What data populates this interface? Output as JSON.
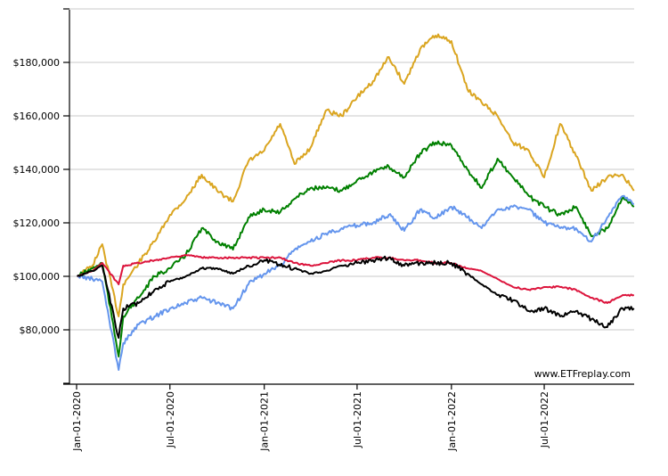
{
  "chart_data": {
    "type": "line",
    "title": "",
    "xlabel": "",
    "ylabel": "",
    "watermark": "www.ETFreplay.com",
    "ylim": [
      60000,
      200000
    ],
    "xlim": [
      "2019-12-20",
      "2022-12-23"
    ],
    "grid": true,
    "legend": "none",
    "y_ticks": [
      60000,
      80000,
      100000,
      120000,
      140000,
      160000,
      180000,
      200000
    ],
    "y_tick_labels": [
      "",
      "$80,000",
      "$100,000",
      "$120,000",
      "$140,000",
      "$160,000",
      "$180,000",
      ""
    ],
    "x_ticks": [
      "2020-01-01",
      "2020-07-01",
      "2021-01-01",
      "2021-07-01",
      "2022-01-01",
      "2022-07-01"
    ],
    "x_tick_labels": [
      "Jan-01-2020",
      "Jul-01-2020",
      "Jan-01-2021",
      "Jul-01-2021",
      "Jan-01-2022",
      "Jul-01-2022"
    ],
    "x": [
      "2020-01-02",
      "2020-02-01",
      "2020-02-20",
      "2020-03-23",
      "2020-04-01",
      "2020-05-01",
      "2020-06-01",
      "2020-07-01",
      "2020-08-01",
      "2020-09-01",
      "2020-10-01",
      "2020-11-01",
      "2020-12-01",
      "2021-01-01",
      "2021-02-01",
      "2021-03-01",
      "2021-04-01",
      "2021-05-01",
      "2021-06-01",
      "2021-07-01",
      "2021-08-01",
      "2021-09-01",
      "2021-10-01",
      "2021-11-01",
      "2021-12-01",
      "2022-01-01",
      "2022-02-01",
      "2022-03-01",
      "2022-04-01",
      "2022-05-01",
      "2022-06-01",
      "2022-07-01",
      "2022-08-01",
      "2022-09-01",
      "2022-10-01",
      "2022-11-01",
      "2022-12-01",
      "2022-12-23"
    ],
    "series": [
      {
        "color": "#DAA520",
        "values": [
          100000,
          104000,
          112000,
          85000,
          97000,
          105000,
          113000,
          123000,
          129000,
          138000,
          132000,
          128000,
          143000,
          147000,
          157000,
          142000,
          148000,
          162000,
          160000,
          167000,
          173000,
          182000,
          172000,
          185000,
          190000,
          188000,
          170000,
          165000,
          160000,
          150000,
          147000,
          137000,
          157000,
          145000,
          132000,
          137000,
          138000,
          132000
        ]
      },
      {
        "color": "#008000",
        "values": [
          100000,
          103000,
          105000,
          70000,
          85000,
          92000,
          100000,
          103000,
          108000,
          118000,
          113000,
          110000,
          122000,
          125000,
          124000,
          129000,
          133000,
          133000,
          132000,
          136000,
          139000,
          141000,
          137000,
          146000,
          150000,
          149000,
          140000,
          133000,
          144000,
          137000,
          130000,
          126000,
          123000,
          126000,
          115000,
          118000,
          130000,
          126000
        ]
      },
      {
        "color": "#6495ED",
        "values": [
          100000,
          99000,
          98000,
          65000,
          75000,
          82000,
          85000,
          88000,
          90000,
          92000,
          90000,
          88000,
          97000,
          101000,
          104000,
          110000,
          113000,
          116000,
          118000,
          119000,
          120000,
          123000,
          117000,
          125000,
          122000,
          126000,
          122000,
          118000,
          125000,
          126000,
          125000,
          120000,
          118000,
          118000,
          113000,
          122000,
          130000,
          127000
        ]
      },
      {
        "color": "#DC143C",
        "values": [
          100000,
          102000,
          105000,
          97000,
          104000,
          105000,
          106000,
          107000,
          108000,
          107000,
          107000,
          107000,
          107000,
          107000,
          107000,
          105000,
          104000,
          105000,
          106000,
          106000,
          107000,
          107000,
          106000,
          106000,
          105000,
          105000,
          103000,
          102000,
          99000,
          96000,
          95000,
          96000,
          96000,
          95000,
          92000,
          90000,
          93000,
          93000
        ]
      },
      {
        "color": "#000000",
        "values": [
          100000,
          102000,
          104000,
          77000,
          88000,
          90000,
          95000,
          98000,
          100000,
          103000,
          103000,
          101000,
          104000,
          106000,
          104000,
          103000,
          101000,
          102000,
          104000,
          105000,
          106000,
          107000,
          104000,
          105000,
          105000,
          105000,
          101000,
          97000,
          93000,
          91000,
          87000,
          88000,
          85000,
          87000,
          84000,
          81000,
          88000,
          88000
        ]
      }
    ]
  }
}
